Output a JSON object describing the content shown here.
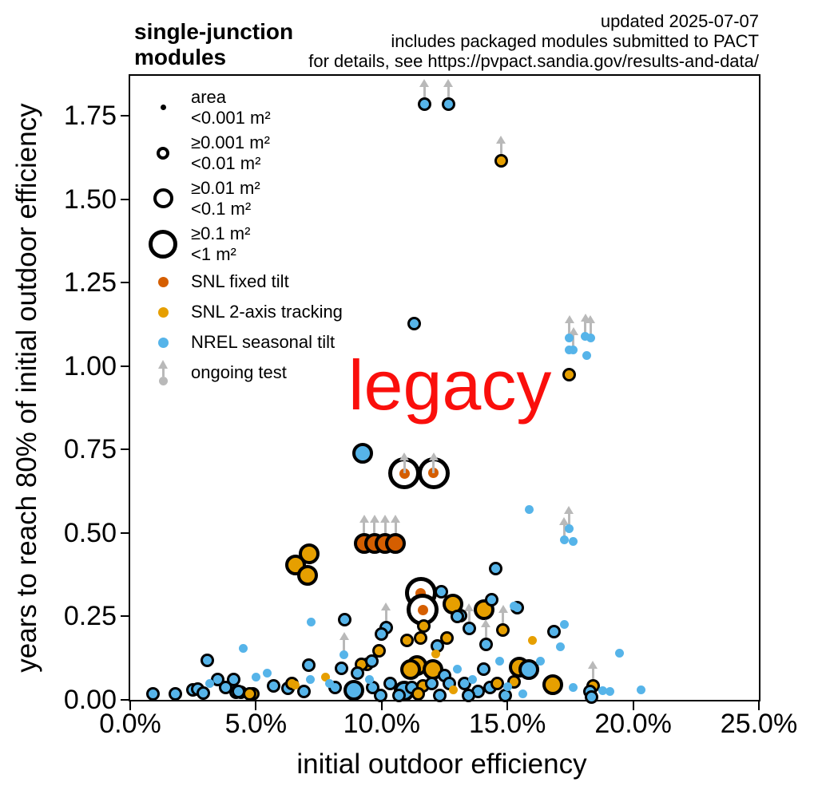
{
  "header": {
    "title_line1": "single-junction",
    "title_line2": "modules",
    "annotation_line1": "updated 2025-07-07",
    "annotation_line2": "includes packaged modules submitted to PACT",
    "annotation_line3": "for details, see https://pvpact.sandia.gov/results-and-data/"
  },
  "watermark": "legacy",
  "colors": {
    "fixed": "#d55e00",
    "tracking": "#e69f00",
    "nrel": "#56b4e9",
    "arrow": "#b9b9b9",
    "watermark": "#fa0f0c",
    "axis": "#000000"
  },
  "legend": {
    "size_entries": [
      {
        "label1": "area",
        "label2": "<0.001 m²"
      },
      {
        "label1": "≥0.001 m²",
        "label2": "<0.01 m²"
      },
      {
        "label1": "≥0.01 m²",
        "label2": "<0.1 m²"
      },
      {
        "label1": "≥0.1 m²",
        "label2": "<1 m²"
      }
    ],
    "color_entries": [
      {
        "label": "SNL fixed tilt",
        "color_key": "fixed"
      },
      {
        "label": "SNL 2-axis tracking",
        "color_key": "tracking"
      },
      {
        "label": "NREL seasonal tilt",
        "color_key": "nrel"
      },
      {
        "label": "ongoing test",
        "color_key": "arrow"
      }
    ]
  },
  "chart_data": {
    "type": "scatter",
    "title": "single-junction modules",
    "xlabel": "initial outdoor efficiency",
    "ylabel": "years to reach 80% of initial outdoor efficiency",
    "xlim": [
      0,
      25
    ],
    "ylim": [
      0,
      1.87
    ],
    "x_ticks": [
      "0.0%",
      "5.0%",
      "10.0%",
      "15.0%",
      "20.0%",
      "25.0%"
    ],
    "x_tick_values": [
      0,
      5,
      10,
      15,
      20,
      25
    ],
    "y_ticks": [
      "0.00",
      "0.25",
      "0.50",
      "0.75",
      "1.00",
      "1.25",
      "1.50",
      "1.75"
    ],
    "y_tick_values": [
      0,
      0.25,
      0.5,
      0.75,
      1.0,
      1.25,
      1.5,
      1.75
    ],
    "grid": false,
    "legend_position": "upper-left-inside",
    "series_names": {
      "fixed": "SNL fixed tilt",
      "tracking": "SNL 2-axis tracking",
      "nrel": "NREL seasonal tilt"
    },
    "size_classes": {
      "1": "area <0.001 m²",
      "2": "≥0.001 m² <0.01 m²",
      "3": "≥0.01 m² <0.1 m²",
      "4": "≥0.1 m² <1 m²"
    },
    "point_format": [
      "x_percent",
      "years",
      "series",
      "size_class",
      "ongoing_test_arrow"
    ],
    "points": [
      [
        11.7,
        1.785,
        "nrel",
        2,
        1
      ],
      [
        12.65,
        1.785,
        "nrel",
        2,
        1
      ],
      [
        14.75,
        1.615,
        "tracking",
        2,
        1
      ],
      [
        11.3,
        1.127,
        "nrel",
        2,
        0
      ],
      [
        17.47,
        1.085,
        "nrel",
        1,
        1
      ],
      [
        18.1,
        1.09,
        "nrel",
        1,
        1
      ],
      [
        18.3,
        1.085,
        "nrel",
        1,
        1
      ],
      [
        17.44,
        1.048,
        "nrel",
        1,
        0
      ],
      [
        17.63,
        1.048,
        "nrel",
        1,
        1
      ],
      [
        18.14,
        1.031,
        "nrel",
        1,
        0
      ],
      [
        17.47,
        0.974,
        "tracking",
        2,
        0
      ],
      [
        9.24,
        0.738,
        "nrel",
        3,
        0
      ],
      [
        10.9,
        0.678,
        "fixed",
        4,
        1
      ],
      [
        12.07,
        0.68,
        "fixed",
        4,
        1
      ],
      [
        15.88,
        0.571,
        "nrel",
        1,
        0
      ],
      [
        17.44,
        0.513,
        "nrel",
        1,
        1
      ],
      [
        17.25,
        0.48,
        "nrel",
        1,
        1
      ],
      [
        17.63,
        0.475,
        "nrel",
        1,
        0
      ],
      [
        9.3,
        0.468,
        "fixed",
        3,
        1
      ],
      [
        9.72,
        0.468,
        "fixed",
        3,
        1
      ],
      [
        10.14,
        0.468,
        "fixed",
        3,
        1
      ],
      [
        10.56,
        0.468,
        "fixed",
        3,
        1
      ],
      [
        7.12,
        0.437,
        "tracking",
        3,
        0
      ],
      [
        6.58,
        0.403,
        "tracking",
        3,
        0
      ],
      [
        7.05,
        0.372,
        "tracking",
        3,
        0
      ],
      [
        14.52,
        0.394,
        "nrel",
        2,
        0
      ],
      [
        11.56,
        0.32,
        "fixed",
        4,
        0
      ],
      [
        12.36,
        0.325,
        "nrel",
        2,
        0
      ],
      [
        12.83,
        0.286,
        "tracking",
        3,
        0
      ],
      [
        11.63,
        0.27,
        "fixed",
        4,
        0
      ],
      [
        14.36,
        0.301,
        "nrel",
        2,
        0
      ],
      [
        14.07,
        0.27,
        "tracking",
        3,
        0
      ],
      [
        13.15,
        0.253,
        "nrel",
        2,
        0
      ],
      [
        15.25,
        0.282,
        "nrel",
        1,
        0
      ],
      [
        15.4,
        0.277,
        "nrel",
        2,
        0
      ],
      [
        13.02,
        0.251,
        "nrel",
        2,
        0
      ],
      [
        8.54,
        0.241,
        "nrel",
        2,
        0
      ],
      [
        7.21,
        0.234,
        "nrel",
        1,
        0
      ],
      [
        10.17,
        0.217,
        "nrel",
        2,
        1
      ],
      [
        11.66,
        0.222,
        "tracking",
        2,
        0
      ],
      [
        13.47,
        0.215,
        "nrel",
        2,
        1
      ],
      [
        14.83,
        0.21,
        "tracking",
        2,
        1
      ],
      [
        16.84,
        0.205,
        "nrel",
        2,
        0
      ],
      [
        17.28,
        0.227,
        "nrel",
        1,
        0
      ],
      [
        10.0,
        0.198,
        "nrel",
        2,
        0
      ],
      [
        11.02,
        0.179,
        "tracking",
        2,
        0
      ],
      [
        11.56,
        0.186,
        "tracking",
        2,
        0
      ],
      [
        12.2,
        0.162,
        "nrel",
        2,
        0
      ],
      [
        12.61,
        0.186,
        "tracking",
        2,
        0
      ],
      [
        12.15,
        0.138,
        "tracking",
        1,
        0
      ],
      [
        14.14,
        0.167,
        "nrel",
        2,
        1
      ],
      [
        15.98,
        0.179,
        "tracking",
        1,
        0
      ],
      [
        17.12,
        0.16,
        "nrel",
        1,
        0
      ],
      [
        19.47,
        0.141,
        "nrel",
        1,
        0
      ],
      [
        9.91,
        0.146,
        "tracking",
        2,
        0
      ],
      [
        9.43,
        0.107,
        "tracking",
        2,
        0
      ],
      [
        11.4,
        0.103,
        "tracking",
        3,
        0
      ],
      [
        11.15,
        0.091,
        "tracking",
        3,
        0
      ],
      [
        4.48,
        0.155,
        "nrel",
        1,
        0
      ],
      [
        3.08,
        0.119,
        "nrel",
        2,
        0
      ],
      [
        8.51,
        0.134,
        "nrel",
        1,
        1
      ],
      [
        8.39,
        0.095,
        "nrel",
        2,
        0
      ],
      [
        7.11,
        0.105,
        "nrel",
        2,
        0
      ],
      [
        15.47,
        0.098,
        "tracking",
        3,
        0
      ],
      [
        15.85,
        0.091,
        "nrel",
        3,
        0
      ],
      [
        16.8,
        0.045,
        "tracking",
        3,
        0
      ],
      [
        15.25,
        0.055,
        "tracking",
        2,
        0
      ],
      [
        18.4,
        0.042,
        "tracking",
        2,
        1
      ],
      [
        18.27,
        0.024,
        "nrel",
        2,
        0
      ],
      [
        18.8,
        0.028,
        "nrel",
        1,
        0
      ],
      [
        19.06,
        0.026,
        "nrel",
        1,
        0
      ],
      [
        20.33,
        0.029,
        "nrel",
        1,
        0
      ],
      [
        17.6,
        0.038,
        "nrel",
        1,
        0
      ],
      [
        0.92,
        0.019,
        "nrel",
        2,
        0
      ],
      [
        1.78,
        0.019,
        "nrel",
        2,
        0
      ],
      [
        2.48,
        0.029,
        "nrel",
        2,
        0
      ],
      [
        2.67,
        0.033,
        "nrel",
        2,
        0
      ],
      [
        2.92,
        0.021,
        "nrel",
        2,
        0
      ],
      [
        3.15,
        0.048,
        "nrel",
        1,
        0
      ],
      [
        3.49,
        0.06,
        "nrel",
        2,
        0
      ],
      [
        4.1,
        0.062,
        "nrel",
        2,
        0
      ],
      [
        4.22,
        0.022,
        "nrel",
        2,
        0
      ],
      [
        4.41,
        0.022,
        "nrel",
        2,
        0
      ],
      [
        4.89,
        0.019,
        "tracking",
        2,
        0
      ],
      [
        4.99,
        0.069,
        "nrel",
        1,
        0
      ],
      [
        5.46,
        0.079,
        "nrel",
        1,
        0
      ],
      [
        5.71,
        0.043,
        "nrel",
        2,
        0
      ],
      [
        6.26,
        0.035,
        "nrel",
        2,
        0
      ],
      [
        6.55,
        0.045,
        "tracking",
        1,
        0
      ],
      [
        6.42,
        0.05,
        "tracking",
        2,
        0
      ],
      [
        3.81,
        0.038,
        "nrel",
        2,
        0
      ],
      [
        4.29,
        0.024,
        "nrel",
        2,
        0
      ],
      [
        4.76,
        0.019,
        "tracking",
        2,
        0
      ],
      [
        7.15,
        0.062,
        "nrel",
        1,
        0
      ],
      [
        7.78,
        0.067,
        "tracking",
        1,
        0
      ],
      [
        7.94,
        0.048,
        "nrel",
        1,
        0
      ],
      [
        8.16,
        0.038,
        "nrel",
        2,
        0
      ],
      [
        6.9,
        0.026,
        "nrel",
        2,
        0
      ],
      [
        9.21,
        0.107,
        "tracking",
        2,
        0
      ],
      [
        9.05,
        0.079,
        "nrel",
        2,
        0
      ],
      [
        9.5,
        0.062,
        "nrel",
        1,
        0
      ],
      [
        9.65,
        0.038,
        "nrel",
        2,
        0
      ],
      [
        8.9,
        0.029,
        "nrel",
        3,
        0
      ],
      [
        9.6,
        0.115,
        "nrel",
        2,
        0
      ],
      [
        10.35,
        0.05,
        "nrel",
        2,
        0
      ],
      [
        10.9,
        0.026,
        "nrel",
        3,
        0
      ],
      [
        11.2,
        0.036,
        "nrel",
        2,
        0
      ],
      [
        11.65,
        0.043,
        "tracking",
        2,
        0
      ],
      [
        12.0,
        0.05,
        "nrel",
        2,
        0
      ],
      [
        12.5,
        0.074,
        "nrel",
        2,
        0
      ],
      [
        12.7,
        0.05,
        "nrel",
        2,
        0
      ],
      [
        13.3,
        0.05,
        "nrel",
        2,
        0
      ],
      [
        14.05,
        0.091,
        "nrel",
        2,
        0
      ],
      [
        13.0,
        0.091,
        "nrel",
        1,
        0
      ],
      [
        12.05,
        0.091,
        "tracking",
        3,
        0
      ],
      [
        13.85,
        0.026,
        "nrel",
        2,
        0
      ],
      [
        14.3,
        0.036,
        "nrel",
        2,
        0
      ],
      [
        14.6,
        0.05,
        "tracking",
        2,
        0
      ],
      [
        15.0,
        0.04,
        "nrel",
        1,
        0
      ],
      [
        13.45,
        0.012,
        "nrel",
        2,
        0
      ],
      [
        12.3,
        0.012,
        "nrel",
        2,
        0
      ],
      [
        10.7,
        0.012,
        "nrel",
        2,
        0
      ],
      [
        11.45,
        0.019,
        "tracking",
        2,
        0
      ],
      [
        13.6,
        0.062,
        "nrel",
        1,
        0
      ],
      [
        12.85,
        0.029,
        "tracking",
        1,
        0
      ],
      [
        9.95,
        0.012,
        "nrel",
        2,
        0
      ],
      [
        14.9,
        0.012,
        "nrel",
        2,
        0
      ],
      [
        15.6,
        0.019,
        "nrel",
        1,
        0
      ],
      [
        14.68,
        0.117,
        "nrel",
        1,
        0
      ],
      [
        16.3,
        0.117,
        "nrel",
        1,
        0
      ],
      [
        18.35,
        0.008,
        "nrel",
        2,
        0
      ]
    ]
  }
}
